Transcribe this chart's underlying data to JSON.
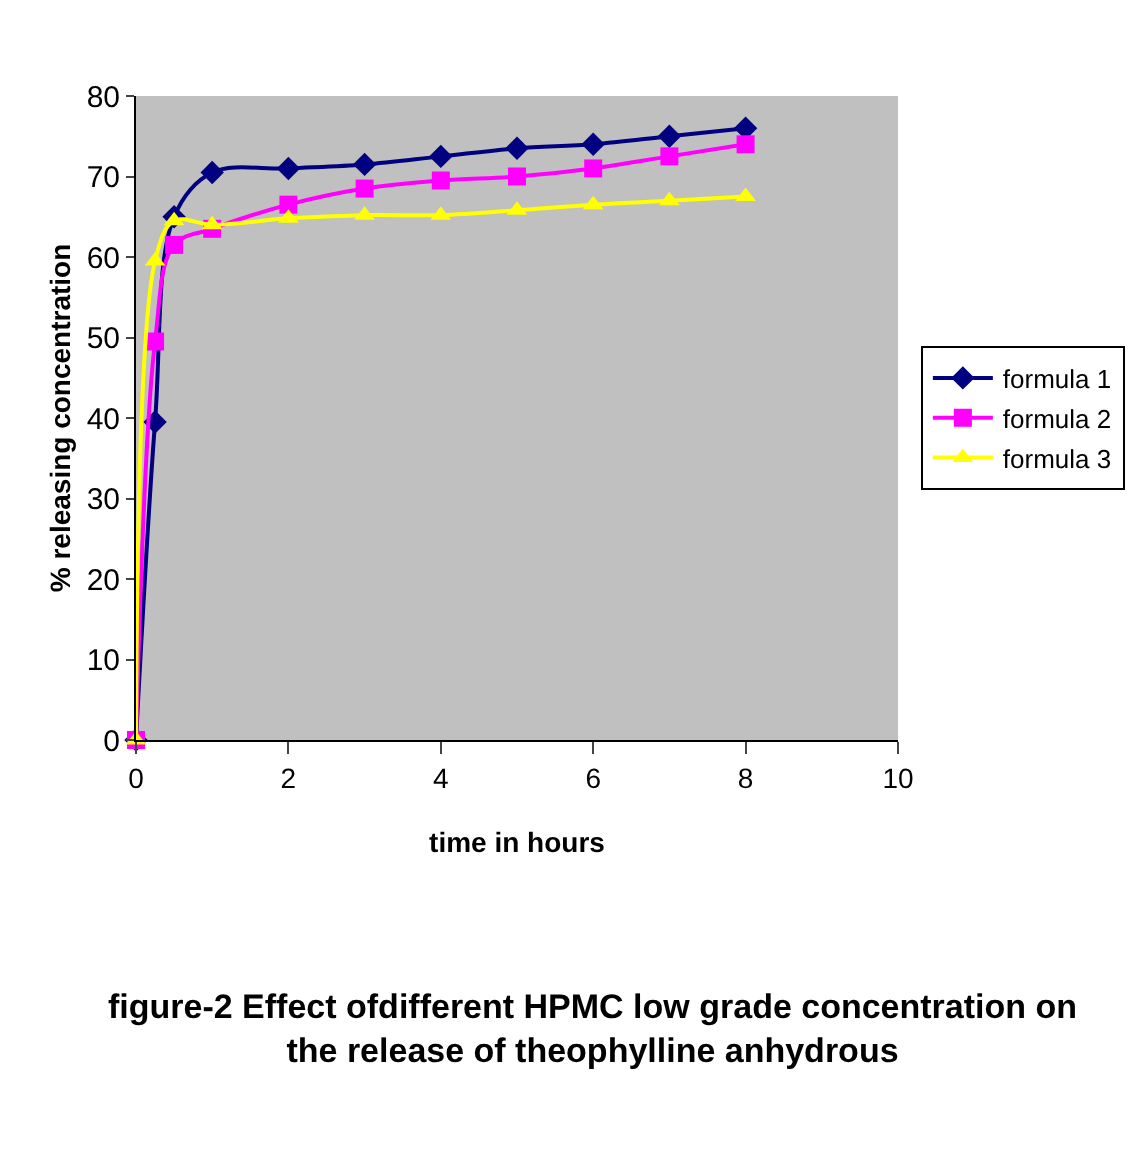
{
  "chart_data": {
    "type": "line",
    "title": "figure-2 Effect ofdifferent HPMC low grade concentration on the release of theophylline anhydrous",
    "xlabel": "time in hours",
    "ylabel": "% releasing concentration",
    "x": [
      0,
      0.25,
      0.5,
      1,
      2,
      3,
      4,
      5,
      6,
      7,
      8
    ],
    "series": [
      {
        "name": "formula 1",
        "color": "#000080",
        "marker": "diamond",
        "values": [
          0,
          39.5,
          65,
          70.5,
          71,
          71.5,
          72.5,
          73.5,
          74,
          75,
          76
        ]
      },
      {
        "name": "formula 2",
        "color": "#ff00ff",
        "marker": "square",
        "values": [
          0,
          49.5,
          61.5,
          63.5,
          66.5,
          68.5,
          69.5,
          70,
          71,
          72.5,
          74
        ]
      },
      {
        "name": "formula 3",
        "color": "#ffff00",
        "marker": "triangle",
        "values": [
          0,
          59.5,
          64.5,
          64,
          64.8,
          65.2,
          65.2,
          65.8,
          66.5,
          67,
          67.5
        ]
      }
    ],
    "xlim": [
      0,
      10
    ],
    "xticks": [
      0,
      2,
      4,
      6,
      8,
      10
    ],
    "ylim": [
      0,
      80
    ],
    "yticks": [
      0,
      10,
      20,
      30,
      40,
      50,
      60,
      70,
      80
    ],
    "grid": false,
    "legend": "right",
    "line_style": "solid"
  }
}
